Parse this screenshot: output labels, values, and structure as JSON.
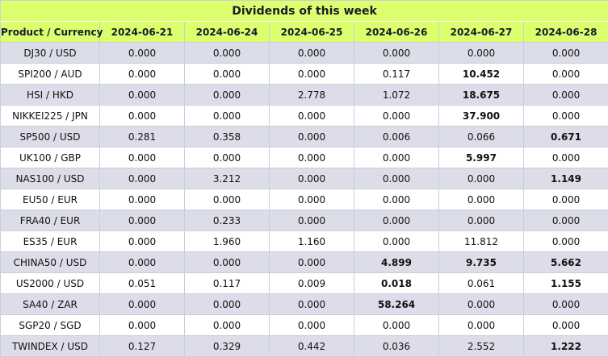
{
  "table": {
    "title": "Dividends of this week",
    "header": [
      "Product / Currency",
      "2024-06-21",
      "2024-06-24",
      "2024-06-25",
      "2024-06-26",
      "2024-06-27",
      "2024-06-28"
    ],
    "rows": [
      [
        "DJ30 / USD",
        "0.000",
        "0.000",
        "0.000",
        "0.000",
        "0.000",
        "0.000"
      ],
      [
        "SPI200 / AUD",
        "0.000",
        "0.000",
        "0.000",
        "0.117",
        {
          "text": "10.452",
          "bold": true
        },
        "0.000"
      ],
      [
        "HSI / HKD",
        "0.000",
        "0.000",
        "2.778",
        "1.072",
        {
          "text": "18.675",
          "bold": true
        },
        "0.000"
      ],
      [
        "NIKKEI225 / JPN",
        "0.000",
        "0.000",
        "0.000",
        "0.000",
        {
          "text": "37.900",
          "bold": true
        },
        "0.000"
      ],
      [
        "SP500 / USD",
        "0.281",
        "0.358",
        "0.000",
        "0.006",
        "0.066",
        {
          "text": "0.671",
          "bold": true
        }
      ],
      [
        "UK100 / GBP",
        "0.000",
        "0.000",
        "0.000",
        "0.000",
        {
          "text": "5.997",
          "bold": true
        },
        "0.000"
      ],
      [
        "NAS100 / USD",
        "0.000",
        "3.212",
        "0.000",
        "0.000",
        "0.000",
        {
          "text": "1.149",
          "bold": true
        }
      ],
      [
        "EU50 / EUR",
        "0.000",
        "0.000",
        "0.000",
        "0.000",
        "0.000",
        "0.000"
      ],
      [
        "FRA40 / EUR",
        "0.000",
        "0.233",
        "0.000",
        "0.000",
        "0.000",
        "0.000"
      ],
      [
        "ES35 / EUR",
        "0.000",
        "1.960",
        "1.160",
        "0.000",
        "11.812",
        "0.000"
      ],
      [
        "CHINA50 / USD",
        "0.000",
        "0.000",
        "0.000",
        {
          "text": "4.899",
          "bold": true
        },
        {
          "text": "9.735",
          "bold": true
        },
        {
          "text": "5.662",
          "bold": true
        }
      ],
      [
        "US2000 / USD",
        "0.051",
        "0.117",
        "0.009",
        {
          "text": "0.018",
          "bold": true
        },
        "0.061",
        {
          "text": "1.155",
          "bold": true
        }
      ],
      [
        "SA40 / ZAR",
        "0.000",
        "0.000",
        "0.000",
        {
          "text": "58.264",
          "bold": true
        },
        "0.000",
        "0.000"
      ],
      [
        "SGP20 / SGD",
        "0.000",
        "0.000",
        "0.000",
        "0.000",
        "0.000",
        "0.000"
      ],
      [
        "TWINDEX / USD",
        "0.127",
        "0.329",
        "0.442",
        "0.036",
        "2.552",
        {
          "text": "1.222",
          "bold": true
        }
      ]
    ]
  }
}
